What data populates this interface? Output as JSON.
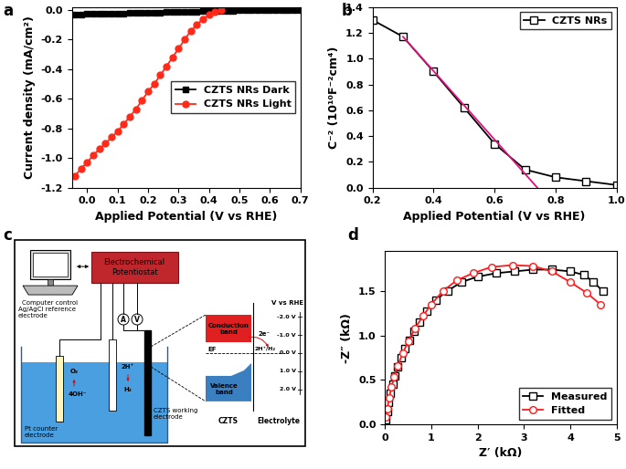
{
  "chart_data": [
    {
      "panel": "a",
      "type": "line",
      "x_label": "Applied Potential (V vs RHE)",
      "y_label": "Current density (mA/cm²)",
      "xlim": [
        -0.05,
        0.7
      ],
      "xticks": [
        0.0,
        0.1,
        0.2,
        0.3,
        0.4,
        0.5,
        0.6,
        0.7
      ],
      "ylim": [
        -1.2,
        0.02
      ],
      "yticks": [
        -1.2,
        -1.0,
        -0.8,
        -0.6,
        -0.4,
        -0.2,
        0.0
      ],
      "legend": "center right",
      "series": [
        {
          "name": "CZTS NRs Dark",
          "color": "#000000",
          "marker": "square",
          "line_style": "solid",
          "x": [
            -0.04,
            -0.02,
            0.0,
            0.02,
            0.04,
            0.06,
            0.08,
            0.1,
            0.12,
            0.14,
            0.16,
            0.18,
            0.2,
            0.22,
            0.24,
            0.26,
            0.28,
            0.3,
            0.32,
            0.34,
            0.36,
            0.38,
            0.4,
            0.42,
            0.44,
            0.46,
            0.48,
            0.5,
            0.52,
            0.54,
            0.56,
            0.58,
            0.6,
            0.62,
            0.64,
            0.66,
            0.68,
            0.7
          ],
          "values": [
            -0.03,
            -0.029,
            -0.028,
            -0.027,
            -0.026,
            -0.025,
            -0.024,
            -0.023,
            -0.022,
            -0.021,
            -0.02,
            -0.019,
            -0.018,
            -0.017,
            -0.016,
            -0.015,
            -0.014,
            -0.013,
            -0.012,
            -0.011,
            -0.01,
            -0.009,
            -0.008,
            -0.007,
            -0.006,
            -0.005,
            -0.004,
            -0.003,
            -0.002,
            -0.001,
            0.0,
            0.0,
            0.0,
            0.0,
            0.0,
            0.0,
            0.0,
            0.0
          ]
        },
        {
          "name": "CZTS NRs Light",
          "color": "#ff2a1a",
          "marker": "circle",
          "line_style": "solid",
          "x": [
            -0.04,
            -0.02,
            0.0,
            0.02,
            0.04,
            0.06,
            0.08,
            0.1,
            0.12,
            0.14,
            0.16,
            0.18,
            0.2,
            0.22,
            0.24,
            0.26,
            0.28,
            0.3,
            0.32,
            0.34,
            0.36,
            0.38,
            0.4,
            0.42,
            0.44
          ],
          "values": [
            -1.12,
            -1.07,
            -1.03,
            -0.98,
            -0.94,
            -0.9,
            -0.86,
            -0.82,
            -0.77,
            -0.72,
            -0.67,
            -0.61,
            -0.55,
            -0.5,
            -0.44,
            -0.38,
            -0.32,
            -0.26,
            -0.2,
            -0.14,
            -0.1,
            -0.06,
            -0.03,
            -0.01,
            0.0
          ]
        }
      ]
    },
    {
      "panel": "b",
      "type": "line",
      "x_label": "Applied Potential (V vs RHE)",
      "y_label": "C⁻² (10¹⁰F⁻²cm⁴)",
      "xlim": [
        0.2,
        1.0
      ],
      "xticks": [
        0.2,
        0.4,
        0.6,
        0.8,
        1.0
      ],
      "ylim": [
        0.0,
        1.4
      ],
      "yticks": [
        0.0,
        0.2,
        0.4,
        0.6,
        0.8,
        1.0,
        1.2,
        1.4
      ],
      "legend": "upper right",
      "series": [
        {
          "name": "CZTS NRs",
          "color": "#000000",
          "marker": "open square",
          "line_style": "solid",
          "x": [
            0.2,
            0.3,
            0.4,
            0.5,
            0.6,
            0.7,
            0.8,
            0.9,
            1.0
          ],
          "values": [
            1.3,
            1.17,
            0.9,
            0.62,
            0.34,
            0.14,
            0.08,
            0.05,
            0.02
          ]
        },
        {
          "color": "#e0117f",
          "marker": "none",
          "line_style": "solid",
          "x": [
            0.3,
            0.74
          ],
          "values": [
            1.17,
            0.0
          ]
        }
      ]
    },
    {
      "panel": "d",
      "type": "line",
      "x_label": "Z′ (kΩ)",
      "y_label": "-Z″ (kΩ)",
      "xlim": [
        0,
        5
      ],
      "xticks": [
        0,
        1,
        2,
        3,
        4,
        5
      ],
      "ylim": [
        0.0,
        1.95
      ],
      "yticks": [
        0.0,
        0.5,
        1.0,
        1.5
      ],
      "legend": "lower right",
      "series": [
        {
          "name": "Measured",
          "color": "#000000",
          "marker": "open square",
          "line_style": "solid",
          "x": [
            0.02,
            0.05,
            0.08,
            0.12,
            0.17,
            0.22,
            0.28,
            0.35,
            0.42,
            0.52,
            0.62,
            0.75,
            0.9,
            1.1,
            1.35,
            1.65,
            2.0,
            2.4,
            2.8,
            3.2,
            3.6,
            4.0,
            4.3,
            4.5,
            4.7
          ],
          "values": [
            0.05,
            0.15,
            0.25,
            0.35,
            0.45,
            0.55,
            0.65,
            0.75,
            0.85,
            0.95,
            1.05,
            1.15,
            1.27,
            1.4,
            1.5,
            1.6,
            1.66,
            1.7,
            1.72,
            1.74,
            1.74,
            1.72,
            1.68,
            1.6,
            1.5
          ]
        },
        {
          "name": "Fitted",
          "color": "#ff1a1a",
          "marker": "open circle",
          "line_style": "solid",
          "x": [
            0.02,
            0.05,
            0.09,
            0.14,
            0.2,
            0.28,
            0.38,
            0.5,
            0.65,
            0.82,
            1.0,
            1.25,
            1.55,
            1.9,
            2.3,
            2.75,
            3.2,
            3.6,
            4.0,
            4.35,
            4.65
          ],
          "values": [
            0.08,
            0.18,
            0.3,
            0.42,
            0.54,
            0.66,
            0.8,
            0.93,
            1.08,
            1.22,
            1.35,
            1.5,
            1.62,
            1.7,
            1.77,
            1.79,
            1.78,
            1.72,
            1.6,
            1.48,
            1.35
          ]
        }
      ]
    }
  ],
  "diagram": {
    "panel": "c",
    "computer": "Computer control",
    "potentiostat": "Electrochemical Potentiostat",
    "ammeter": "A",
    "voltmeter": "V",
    "reference_electrode": "Ag/AgCl reference electrode",
    "counter_electrode": "Pt counter electrode",
    "working_electrode": "CZTS working electrode",
    "reactions": {
      "o2": "O₂",
      "oh": "4OH⁻",
      "h_plus": "2H⁺",
      "h2": "H₂"
    },
    "bands": {
      "conduction": "Conduction band",
      "valence": "Valence band",
      "fermi": "EF",
      "electrons": "2e⁻",
      "semiconductor": "CZTS",
      "electrolyte": "Electrolyte",
      "redox": "2H⁺/H₂"
    },
    "scale": {
      "title": "V vs RHE",
      "labels": [
        "-2.0 V",
        "-1.0 V",
        "0.0 V",
        "1.0 V",
        "2.0 V"
      ]
    }
  }
}
